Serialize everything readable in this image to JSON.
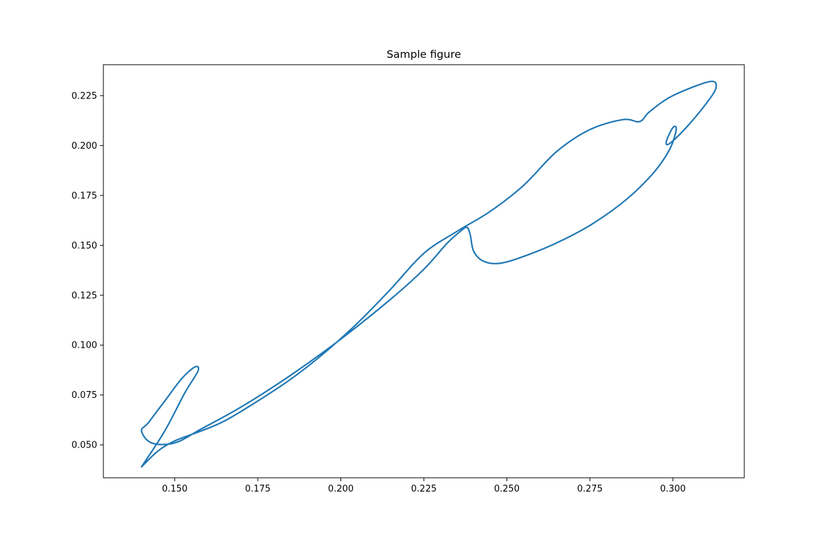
{
  "chart_data": {
    "type": "line",
    "title": "Sample figure",
    "xlabel": "",
    "ylabel": "",
    "xlim": [
      0.1285,
      0.3215
    ],
    "ylim": [
      0.0335,
      0.2405
    ],
    "xticks": [
      0.15,
      0.175,
      0.2,
      0.225,
      0.25,
      0.275,
      0.3
    ],
    "xtick_labels": [
      "0.150",
      "0.175",
      "0.200",
      "0.225",
      "0.250",
      "0.275",
      "0.300"
    ],
    "yticks": [
      0.05,
      0.075,
      0.1,
      0.125,
      0.15,
      0.175,
      0.2,
      0.225
    ],
    "ytick_labels": [
      "0.050",
      "0.075",
      "0.100",
      "0.125",
      "0.150",
      "0.175",
      "0.200",
      "0.225"
    ],
    "grid": false,
    "series": [
      {
        "color": "#1f77b4",
        "x": [
          0.14,
          0.147,
          0.153,
          0.157,
          0.156,
          0.152,
          0.147,
          0.142,
          0.14,
          0.143,
          0.15,
          0.158,
          0.17,
          0.185,
          0.2,
          0.215,
          0.225,
          0.232,
          0.236,
          0.238,
          0.239,
          0.24,
          0.243,
          0.248,
          0.256,
          0.266,
          0.276,
          0.286,
          0.294,
          0.299,
          0.301,
          0.3,
          0.298,
          0.299,
          0.304,
          0.31,
          0.313,
          0.311,
          0.3,
          0.293,
          0.29,
          0.285,
          0.275,
          0.265,
          0.255,
          0.245,
          0.235,
          0.225,
          0.215,
          0.205,
          0.195,
          0.185,
          0.175,
          0.165,
          0.158,
          0.15,
          0.145,
          0.14
        ],
        "y": [
          0.039,
          0.057,
          0.076,
          0.087,
          0.089,
          0.083,
          0.072,
          0.061,
          0.057,
          0.051,
          0.051,
          0.058,
          0.069,
          0.085,
          0.103,
          0.123,
          0.138,
          0.151,
          0.157,
          0.159,
          0.155,
          0.147,
          0.142,
          0.141,
          0.145,
          0.152,
          0.161,
          0.173,
          0.186,
          0.198,
          0.208,
          0.209,
          0.202,
          0.201,
          0.209,
          0.221,
          0.229,
          0.232,
          0.225,
          0.217,
          0.212,
          0.213,
          0.208,
          0.197,
          0.18,
          0.167,
          0.157,
          0.146,
          0.128,
          0.111,
          0.096,
          0.083,
          0.072,
          0.062,
          0.057,
          0.052,
          0.047,
          0.039
        ]
      }
    ]
  }
}
